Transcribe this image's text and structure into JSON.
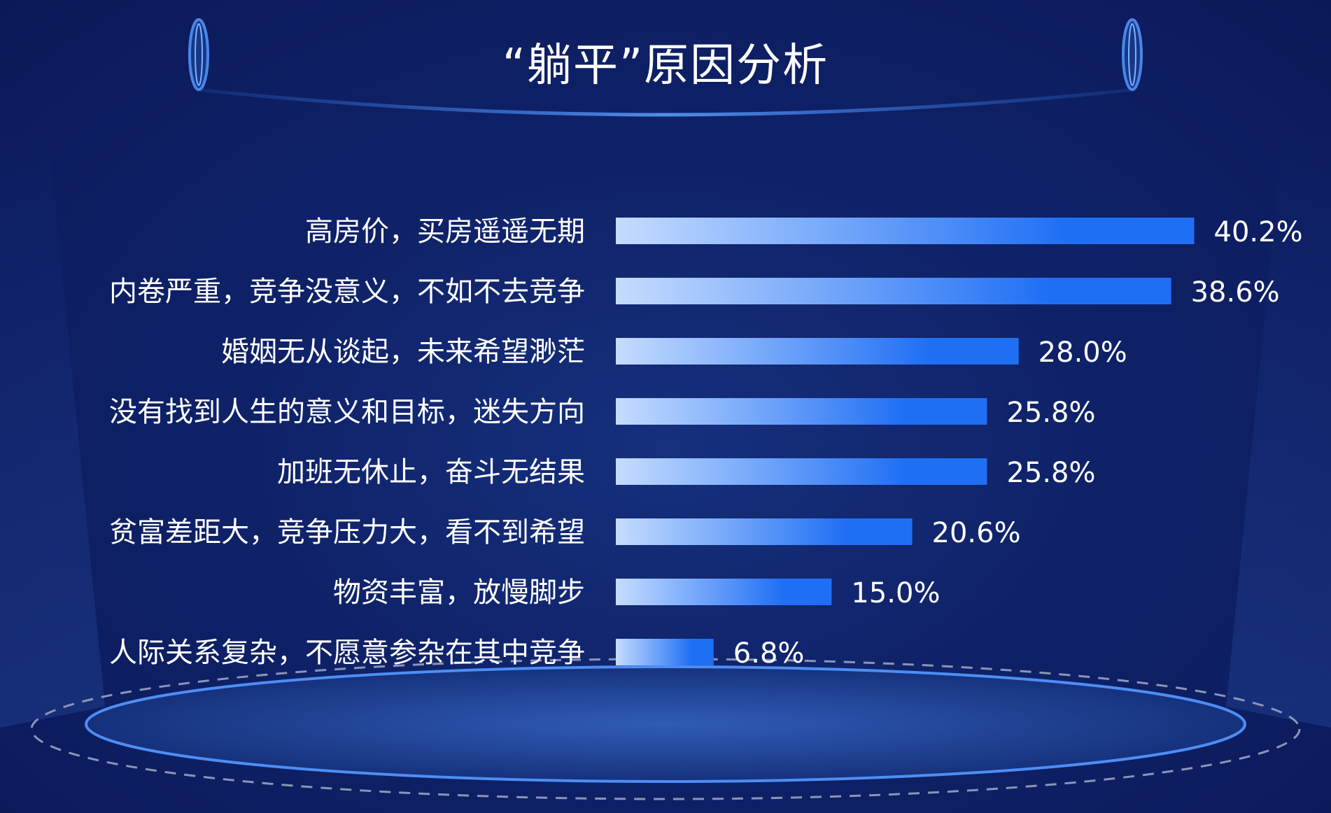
{
  "colors": {
    "background": "#0c1b5a",
    "bar_start": "#c5dcff",
    "bar_end": "#1f6ff5",
    "frame": "#3f7fe0",
    "text": "#ffffff"
  },
  "chart_data": {
    "type": "bar",
    "orientation": "horizontal",
    "title": "“躺平”原因分析",
    "categories": [
      "高房价，买房遥遥无期",
      "内卷严重，竞争没意义，不如不去竞争",
      "婚姻无从谈起，未来希望渺茫",
      "没有找到人生的意义和目标，迷失方向",
      "加班无休止，奋斗无结果",
      "贫富差距大，竞争压力大，看不到希望",
      "物资丰富，放慢脚步",
      "人际关系复杂，不愿意参杂在其中竞争"
    ],
    "values": [
      40.2,
      38.6,
      28.0,
      25.8,
      25.8,
      20.6,
      15.0,
      6.8
    ],
    "value_labels": [
      "40.2%",
      "38.6%",
      "28.0%",
      "25.8%",
      "25.8%",
      "20.6%",
      "15.0%",
      "6.8%"
    ],
    "unit": "%",
    "grid": false,
    "legend": "none"
  }
}
